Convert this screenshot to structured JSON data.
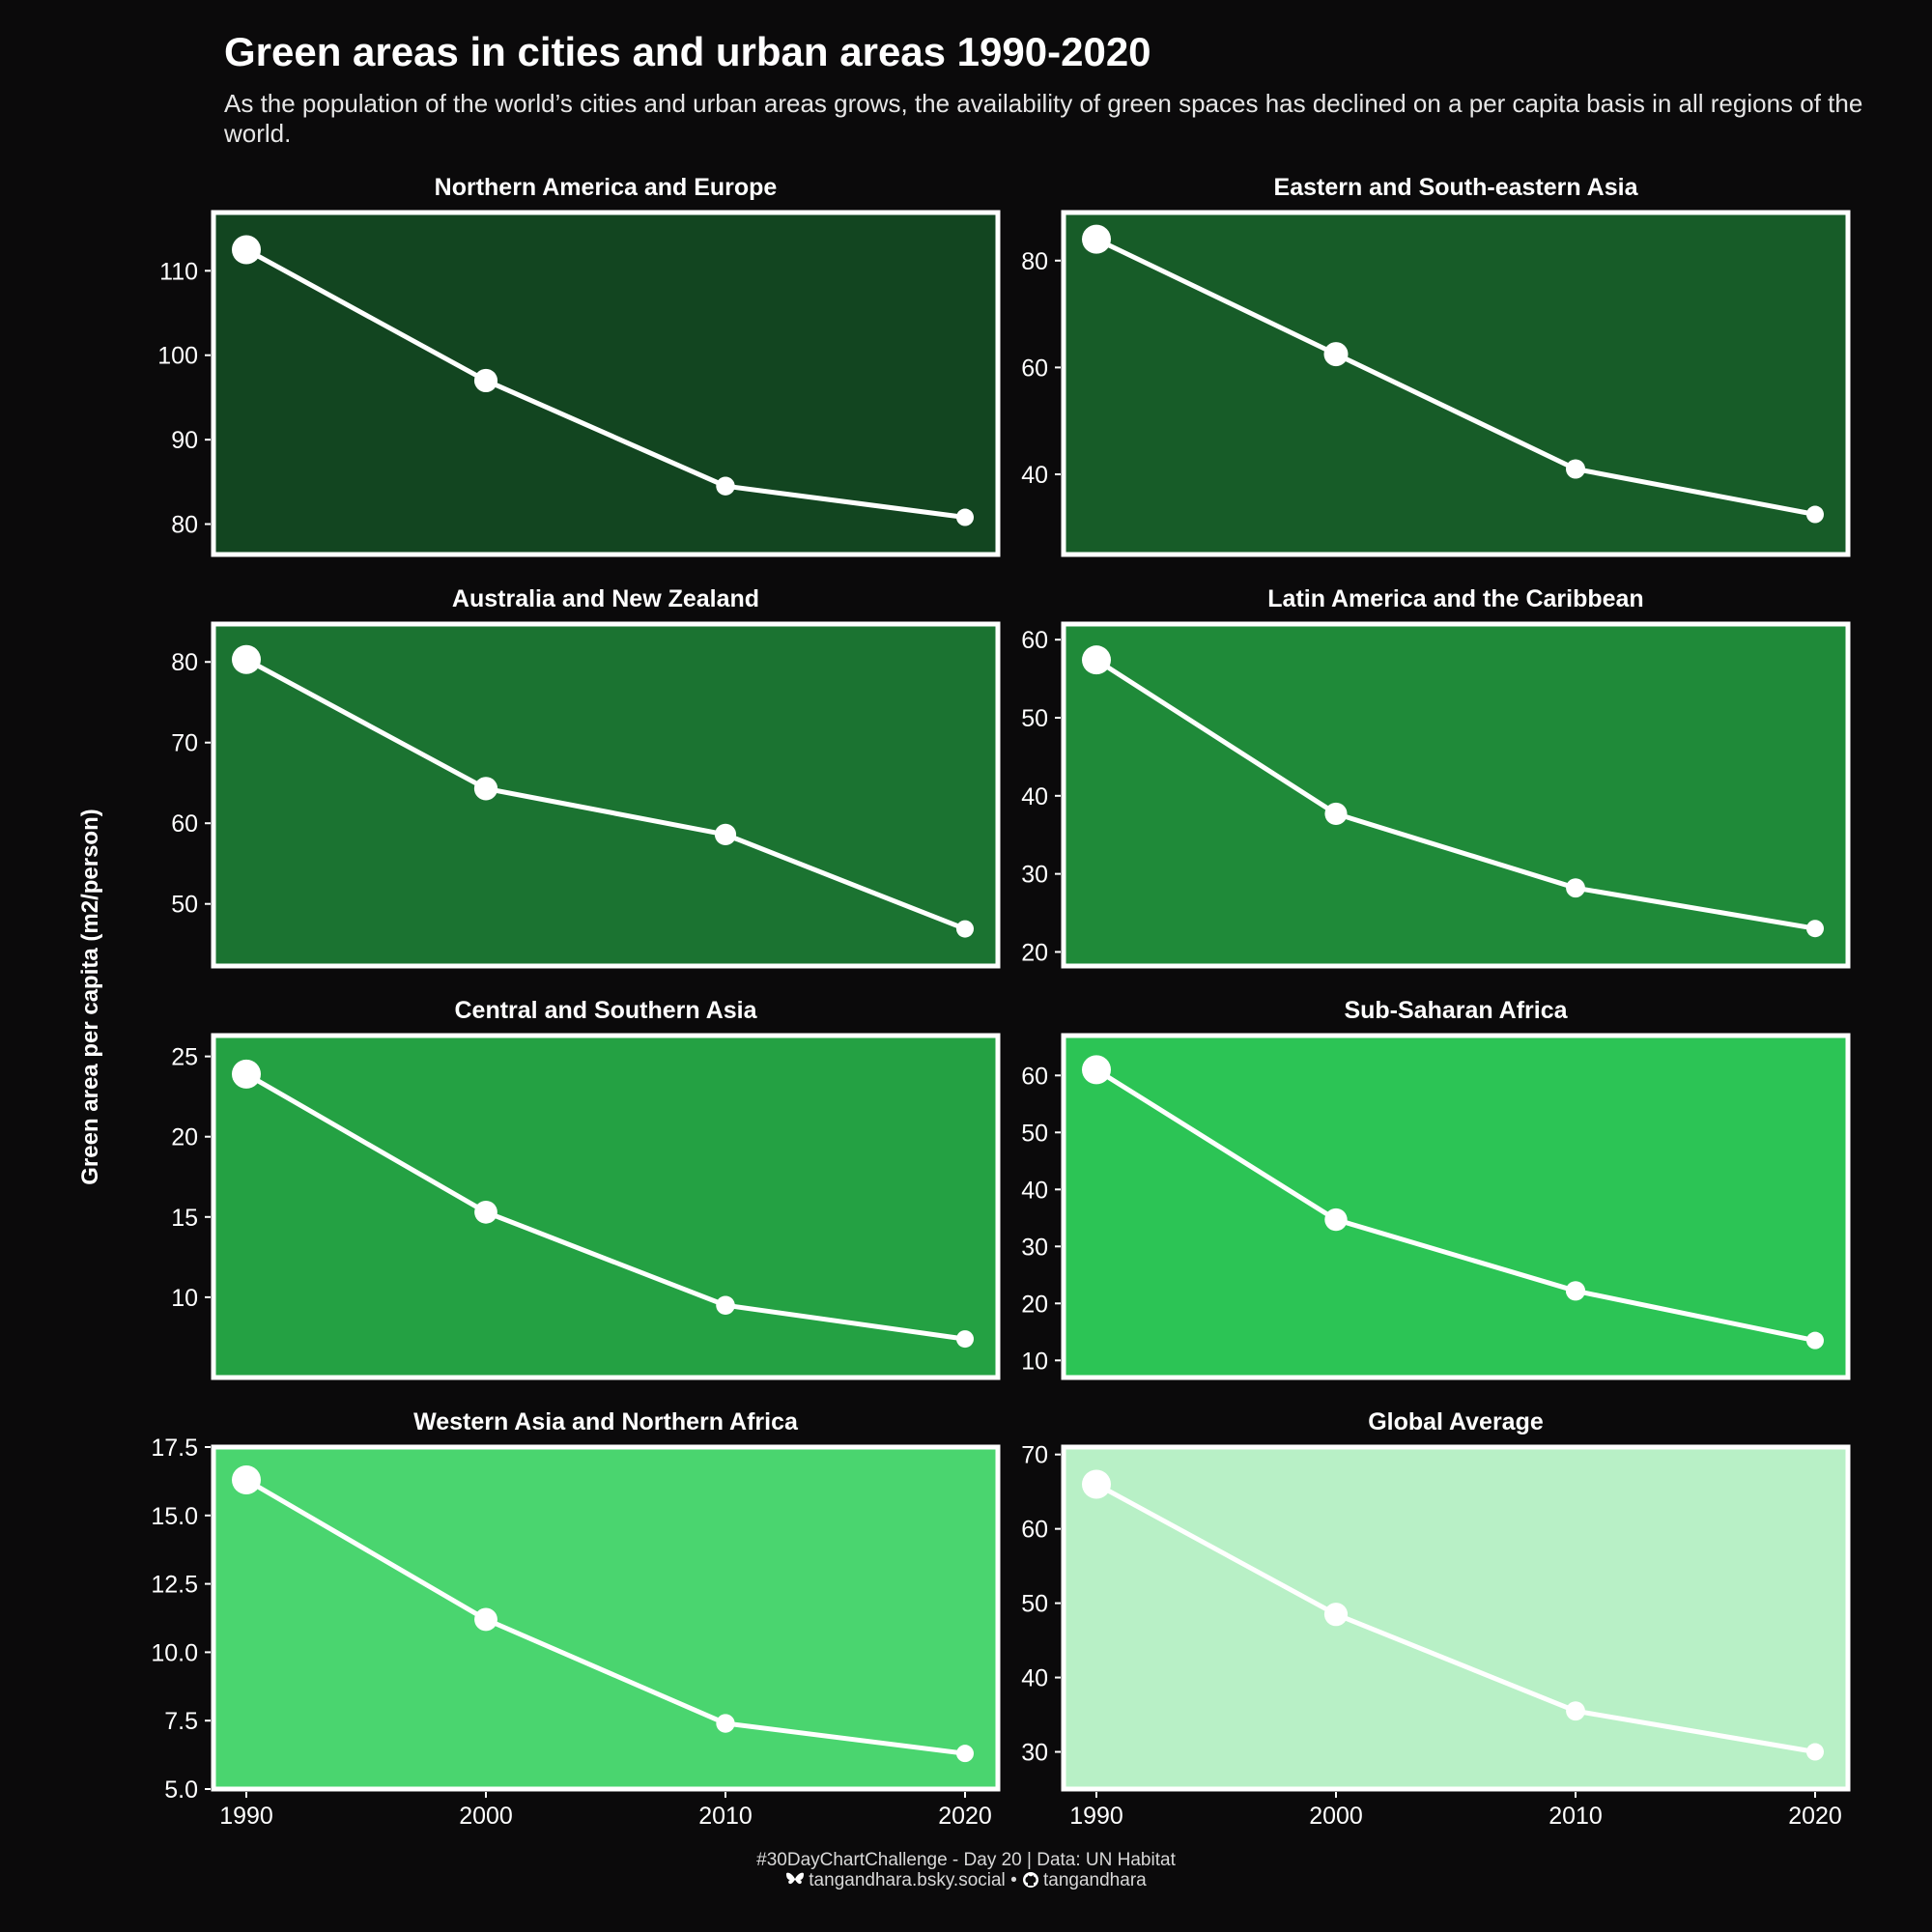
{
  "title": "Green areas in cities and urban areas 1990-2020",
  "subtitle": "As the population of the world’s cities and urban areas grows, the availability of green spaces has declined on a per capita basis in all regions of the world.",
  "caption": {
    "line1": "#30DayChartChallenge - Day 20 | Data: UN Habitat",
    "bluesky": "tangandhara.bsky.social",
    "separator": "•",
    "github": "tangandhara",
    "bluesky_icon": "butterfly-icon",
    "github_icon": "github-icon"
  },
  "colors": {
    "background": "#0b0a0b",
    "line": "#ffffff",
    "frame": "#ffffff"
  },
  "chart_data": {
    "type": "line",
    "facet_layout": "4 rows x 2 columns",
    "x": [
      1990,
      2000,
      2010,
      2020
    ],
    "xticks": [
      "1990",
      "2000",
      "2010",
      "2020"
    ],
    "ylabel": "Green area per capita (m2/person)",
    "xlabel": "",
    "grid": false,
    "legend": "none",
    "panels": [
      {
        "name": "Northern America and Europe",
        "fill": "#124520",
        "values": [
          112.5,
          97.0,
          84.5,
          80.8
        ],
        "ylim": [
          76.4,
          116.9
        ],
        "yticks": [
          80,
          90,
          100,
          110
        ],
        "ytick_labels": [
          "80",
          "90",
          "100",
          "110"
        ]
      },
      {
        "name": "Eastern and South-eastern Asia",
        "fill": "#175c28",
        "values": [
          84.0,
          62.5,
          41.0,
          32.5
        ],
        "ylim": [
          25.0,
          89.0
        ],
        "yticks": [
          40,
          60,
          80
        ],
        "ytick_labels": [
          "40",
          "60",
          "80"
        ]
      },
      {
        "name": "Australia and New Zealand",
        "fill": "#1b7331",
        "values": [
          80.3,
          64.3,
          58.6,
          46.9
        ],
        "ylim": [
          42.3,
          84.7
        ],
        "yticks": [
          50,
          60,
          70,
          80
        ],
        "ytick_labels": [
          "50",
          "60",
          "70",
          "80"
        ]
      },
      {
        "name": "Latin America and the Caribbean",
        "fill": "#1f8a39",
        "values": [
          57.4,
          37.7,
          28.2,
          23.0
        ],
        "ylim": [
          18.2,
          62.0
        ],
        "yticks": [
          20,
          30,
          40,
          50,
          60
        ],
        "ytick_labels": [
          "20",
          "30",
          "40",
          "50",
          "60"
        ]
      },
      {
        "name": "Central and Southern Asia",
        "fill": "#24a143",
        "values": [
          23.9,
          15.3,
          9.5,
          7.4
        ],
        "ylim": [
          5.0,
          26.3
        ],
        "yticks": [
          10,
          15,
          20,
          25
        ],
        "ytick_labels": [
          "10",
          "15",
          "20",
          "25"
        ]
      },
      {
        "name": "Sub-Saharan Africa",
        "fill": "#2cc455",
        "values": [
          61.0,
          34.7,
          22.2,
          13.5
        ],
        "ylim": [
          7.0,
          67.0
        ],
        "yticks": [
          10,
          20,
          30,
          40,
          50,
          60
        ],
        "ytick_labels": [
          "10",
          "20",
          "30",
          "40",
          "50",
          "60"
        ]
      },
      {
        "name": "Western Asia and Northern Africa",
        "fill": "#4ad56f",
        "values": [
          16.3,
          11.2,
          7.4,
          6.3
        ],
        "ylim": [
          5.0,
          17.5
        ],
        "yticks": [
          5.0,
          7.5,
          10.0,
          12.5,
          15.0,
          17.5
        ],
        "ytick_labels": [
          "5.0",
          "7.5",
          "10.0",
          "12.5",
          "15.0",
          "17.5"
        ]
      },
      {
        "name": "Global Average",
        "fill": "#b8f0c6",
        "values": [
          66.0,
          48.5,
          35.5,
          30.0
        ],
        "ylim": [
          25.0,
          71.0
        ],
        "yticks": [
          30,
          40,
          50,
          60,
          70
        ],
        "ytick_labels": [
          "30",
          "40",
          "50",
          "60",
          "70"
        ]
      }
    ]
  }
}
